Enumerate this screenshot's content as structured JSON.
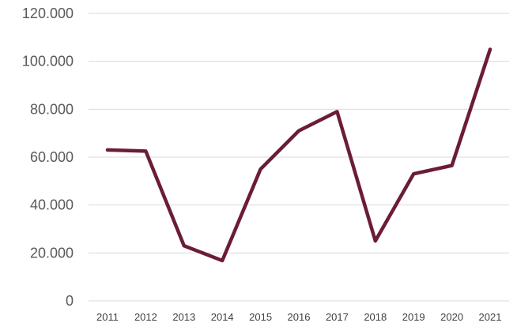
{
  "chart_data": {
    "type": "line",
    "title": "",
    "xlabel": "",
    "ylabel": "",
    "x": [
      "2011",
      "2012",
      "2013",
      "2014",
      "2015",
      "2016",
      "2017",
      "2018",
      "2019",
      "2020",
      "2021"
    ],
    "series": [
      {
        "values": [
          63000,
          62500,
          23000,
          16800,
          55000,
          71000,
          79000,
          25000,
          53000,
          56500,
          105000
        ],
        "color": "#6b1d35"
      }
    ],
    "ylim": [
      0,
      120000
    ],
    "yticks": [
      0,
      20000,
      40000,
      60000,
      80000,
      100000,
      120000
    ],
    "ytick_labels": [
      "0",
      "20.000",
      "40.000",
      "60.000",
      "80.000",
      "100.000",
      "120.000"
    ],
    "grid": true,
    "gridline_color": "#d9d9d9",
    "legend": "none"
  }
}
